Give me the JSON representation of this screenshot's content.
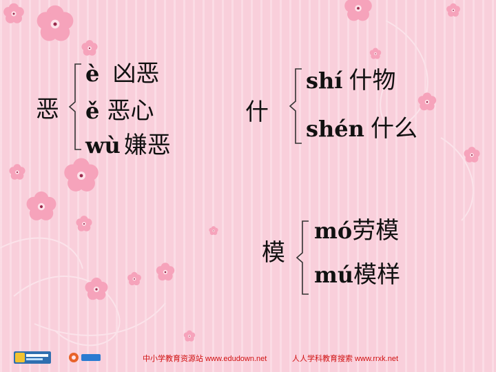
{
  "groups": [
    {
      "head": "恶",
      "readings": [
        {
          "pinyin": "è",
          "word": "凶恶"
        },
        {
          "pinyin": "ě",
          "word": "恶心"
        },
        {
          "pinyin": "wù",
          "word": "嫌恶"
        }
      ]
    },
    {
      "head": "什",
      "readings": [
        {
          "pinyin": "shí",
          "word": "什物"
        },
        {
          "pinyin": "shén",
          "word": "什么"
        }
      ]
    },
    {
      "head": "模",
      "readings": [
        {
          "pinyin": "mó",
          "word": "劳模"
        },
        {
          "pinyin": "mú",
          "word": "模样"
        }
      ]
    }
  ],
  "footer": {
    "site1": "中小学教育资源站 www.edudown.net",
    "site2": "人人学科教育搜索  www.rrxk.net"
  },
  "icons": [
    "flower-icon",
    "swirl-icon",
    "edudown-logo-icon",
    "rrxk-logo-icon"
  ],
  "colors": {
    "background": "#f9cfdb",
    "flower": "#f59bb5",
    "footer_text": "#d01010"
  }
}
